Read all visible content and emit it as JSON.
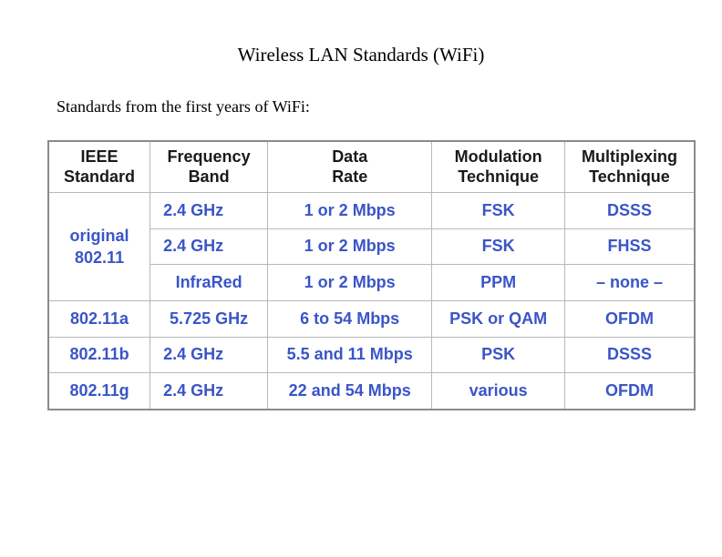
{
  "title": "Wireless LAN Standards (WiFi)",
  "subtitle": "Standards from the first years of WiFi:",
  "headers": {
    "c1_l1": "IEEE",
    "c1_l2": "Standard",
    "c2_l1": "Frequency",
    "c2_l2": "Band",
    "c3_l1": "Data",
    "c3_l2": "Rate",
    "c4_l1": "Modulation",
    "c4_l2": "Technique",
    "c5_l1": "Multiplexing",
    "c5_l2": "Technique"
  },
  "original": {
    "std_l1": "original",
    "std_l2": "802.11",
    "rows": [
      {
        "band": "2.4 GHz",
        "rate": "1 or 2 Mbps",
        "mod": "FSK",
        "mux": "DSSS"
      },
      {
        "band": "2.4 GHz",
        "rate": "1 or 2 Mbps",
        "mod": "FSK",
        "mux": "FHSS"
      },
      {
        "band": "InfraRed",
        "rate": "1 or 2 Mbps",
        "mod": "PPM",
        "mux": "– none –"
      }
    ]
  },
  "rows": [
    {
      "std": "802.11a",
      "band": "5.725 GHz",
      "rate": "6 to 54 Mbps",
      "mod": "PSK or QAM",
      "mux": "OFDM"
    },
    {
      "std": "802.11b",
      "band": "2.4 GHz",
      "rate": "5.5 and 11 Mbps",
      "mod": "PSK",
      "mux": "DSSS"
    },
    {
      "std": "802.11g",
      "band": "2.4 GHz",
      "rate": "22 and 54 Mbps",
      "mod": "various",
      "mux": "OFDM"
    }
  ]
}
